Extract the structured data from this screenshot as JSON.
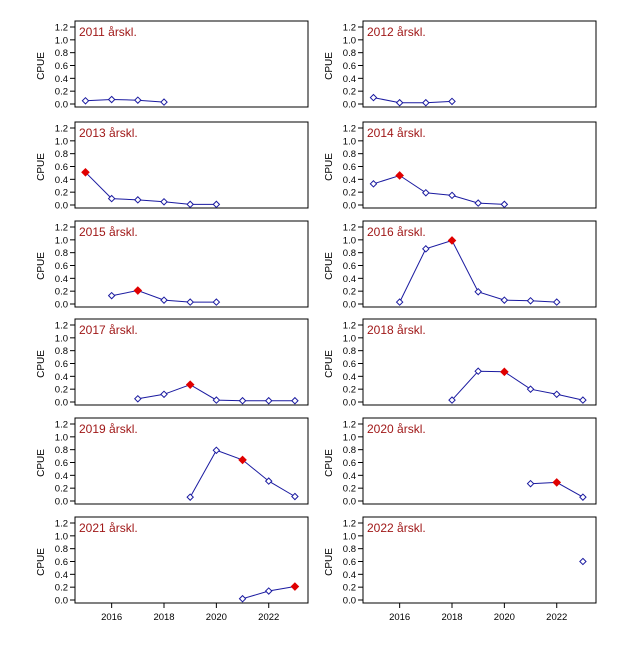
{
  "chart_data": {
    "layout": {
      "rows": 6,
      "cols": 2
    },
    "x_range": [
      2014.6,
      2023.5
    ],
    "x_ticks": [
      2016,
      2018,
      2020,
      2022
    ],
    "x_tick_labels": [
      "2016",
      "2018",
      "2020",
      "2022"
    ],
    "y_range": [
      0,
      1.2
    ],
    "y_ticks": [
      0,
      0.2,
      0.4,
      0.6,
      0.8,
      1.0,
      1.2
    ],
    "y_tick_labels": [
      "0.0",
      "0.2",
      "0.4",
      "0.6",
      "0.8",
      "1.0",
      "1.2"
    ],
    "colors": {
      "line": "#1a1aa0",
      "marker_open": "#1a1aa0",
      "marker_highlight": "#e00000",
      "title": "#a01818",
      "axis": "#000000"
    },
    "panels": [
      {
        "type": "line",
        "title": "2011 årskl.",
        "ylabel": "CPUE",
        "show_xticks": false,
        "x": [
          2015,
          2016,
          2017,
          2018
        ],
        "y": [
          0.05,
          0.07,
          0.06,
          0.03
        ],
        "highlight": []
      },
      {
        "type": "line",
        "title": "2012 årskl.",
        "ylabel": "CPUE",
        "show_xticks": false,
        "x": [
          2015,
          2016,
          2017,
          2018
        ],
        "y": [
          0.1,
          0.02,
          0.02,
          0.04
        ],
        "highlight": []
      },
      {
        "type": "line",
        "title": "2013 årskl.",
        "ylabel": "CPUE",
        "show_xticks": false,
        "x": [
          2015,
          2016,
          2017,
          2018,
          2019,
          2020
        ],
        "y": [
          0.51,
          0.1,
          0.08,
          0.05,
          0.01,
          0.01
        ],
        "highlight": [
          2015
        ]
      },
      {
        "type": "line",
        "title": "2014 årskl.",
        "ylabel": "CPUE",
        "show_xticks": false,
        "x": [
          2015,
          2016,
          2017,
          2018,
          2019,
          2020
        ],
        "y": [
          0.33,
          0.46,
          0.19,
          0.15,
          0.03,
          0.01
        ],
        "highlight": [
          2016
        ]
      },
      {
        "type": "line",
        "title": "2015 årskl.",
        "ylabel": "CPUE",
        "show_xticks": false,
        "x": [
          2016,
          2017,
          2018,
          2019,
          2020
        ],
        "y": [
          0.13,
          0.21,
          0.06,
          0.03,
          0.03
        ],
        "highlight": [
          2017
        ]
      },
      {
        "type": "line",
        "title": "2016 årskl.",
        "ylabel": "CPUE",
        "show_xticks": false,
        "x": [
          2016,
          2017,
          2018,
          2019,
          2020,
          2021,
          2022
        ],
        "y": [
          0.03,
          0.86,
          0.99,
          0.19,
          0.06,
          0.05,
          0.03
        ],
        "highlight": [
          2018
        ]
      },
      {
        "type": "line",
        "title": "2017 årskl.",
        "ylabel": "CPUE",
        "show_xticks": false,
        "x": [
          2017,
          2018,
          2019,
          2020,
          2021,
          2022,
          2023
        ],
        "y": [
          0.05,
          0.12,
          0.27,
          0.03,
          0.02,
          0.02,
          0.02
        ],
        "highlight": [
          2019
        ]
      },
      {
        "type": "line",
        "title": "2018 årskl.",
        "ylabel": "CPUE",
        "show_xticks": false,
        "x": [
          2018,
          2019,
          2020,
          2021,
          2022,
          2023
        ],
        "y": [
          0.03,
          0.48,
          0.47,
          0.2,
          0.12,
          0.03
        ],
        "highlight": [
          2020
        ]
      },
      {
        "type": "line",
        "title": "2019 årskl.",
        "ylabel": "CPUE",
        "show_xticks": false,
        "x": [
          2019,
          2020,
          2021,
          2022,
          2023
        ],
        "y": [
          0.06,
          0.79,
          0.64,
          0.31,
          0.07
        ],
        "highlight": [
          2021
        ]
      },
      {
        "type": "line",
        "title": "2020 årskl.",
        "ylabel": "CPUE",
        "show_xticks": false,
        "x": [
          2021,
          2022,
          2023
        ],
        "y": [
          0.27,
          0.29,
          0.06
        ],
        "highlight": [
          2022
        ]
      },
      {
        "type": "line",
        "title": "2021 årskl.",
        "ylabel": "CPUE",
        "show_xticks": true,
        "x": [
          2021,
          2022,
          2023
        ],
        "y": [
          0.02,
          0.14,
          0.21
        ],
        "highlight": [
          2023
        ]
      },
      {
        "type": "line",
        "title": "2022 årskl.",
        "ylabel": "CPUE",
        "show_xticks": true,
        "x": [
          2023
        ],
        "y": [
          0.6
        ],
        "highlight": []
      }
    ]
  }
}
